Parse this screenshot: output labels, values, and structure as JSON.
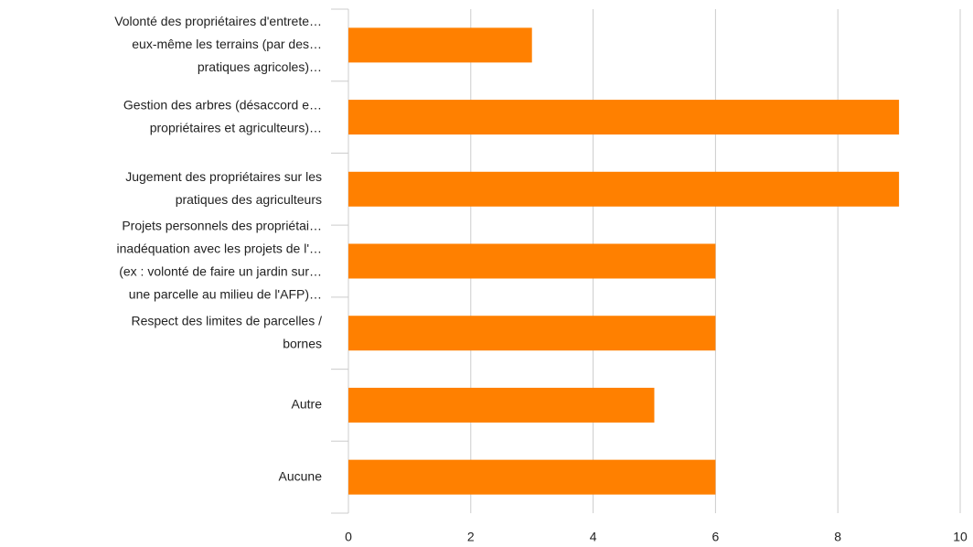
{
  "chart_data": {
    "type": "bar",
    "orientation": "horizontal",
    "categories": [
      [
        "Volonté des propriétaires d'entrete…",
        "eux-même les terrains (par des…",
        "pratiques agricoles)…"
      ],
      [
        "Gestion des arbres (désaccord e…",
        "propriétaires et agriculteurs)…"
      ],
      [
        "Jugement des propriétaires sur les",
        "pratiques des agriculteurs"
      ],
      [
        "Projets personnels des propriétai…",
        "inadéquation avec les projets de l'…",
        "(ex : volonté de faire un jardin sur…",
        "une parcelle au milieu de l'AFP)…"
      ],
      [
        "Respect des limites de parcelles /",
        "bornes"
      ],
      [
        "Autre"
      ],
      [
        "Aucune"
      ]
    ],
    "values": [
      3,
      9,
      9,
      6,
      6,
      5,
      6
    ],
    "color": "#ff8000",
    "xlim": [
      0,
      10
    ],
    "xticks": [
      0,
      2,
      4,
      6,
      8,
      10
    ],
    "grid": true
  }
}
